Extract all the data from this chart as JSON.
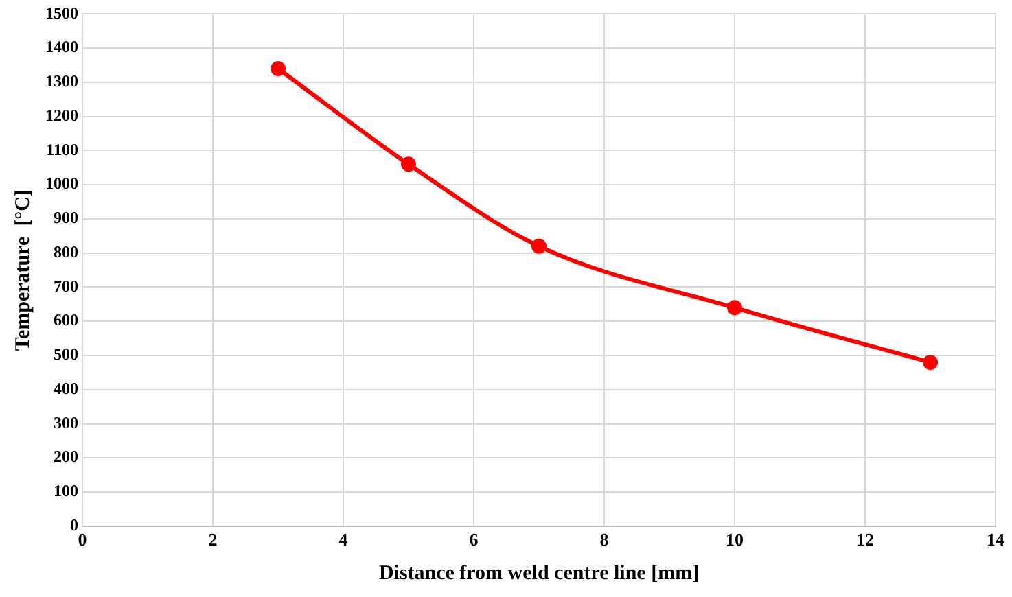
{
  "chart_data": {
    "type": "line",
    "xlabel": "Distance from weld centre line [mm]",
    "ylabel": "Temperature  [°C]",
    "x": [
      3,
      5,
      7,
      10,
      13
    ],
    "series": [
      {
        "color": "#ff0000",
        "values": [
          1340,
          1060,
          820,
          640,
          480
        ]
      }
    ],
    "xlim": [
      0,
      14
    ],
    "xticks": [
      0,
      2,
      4,
      6,
      8,
      10,
      12,
      14
    ],
    "ylim": [
      0,
      1500
    ],
    "yticks": [
      0,
      100,
      200,
      300,
      400,
      500,
      600,
      700,
      800,
      900,
      1000,
      1100,
      1200,
      1300,
      1400,
      1500
    ],
    "grid": true,
    "legend": false,
    "marker": "circle",
    "line_style": "solid"
  }
}
